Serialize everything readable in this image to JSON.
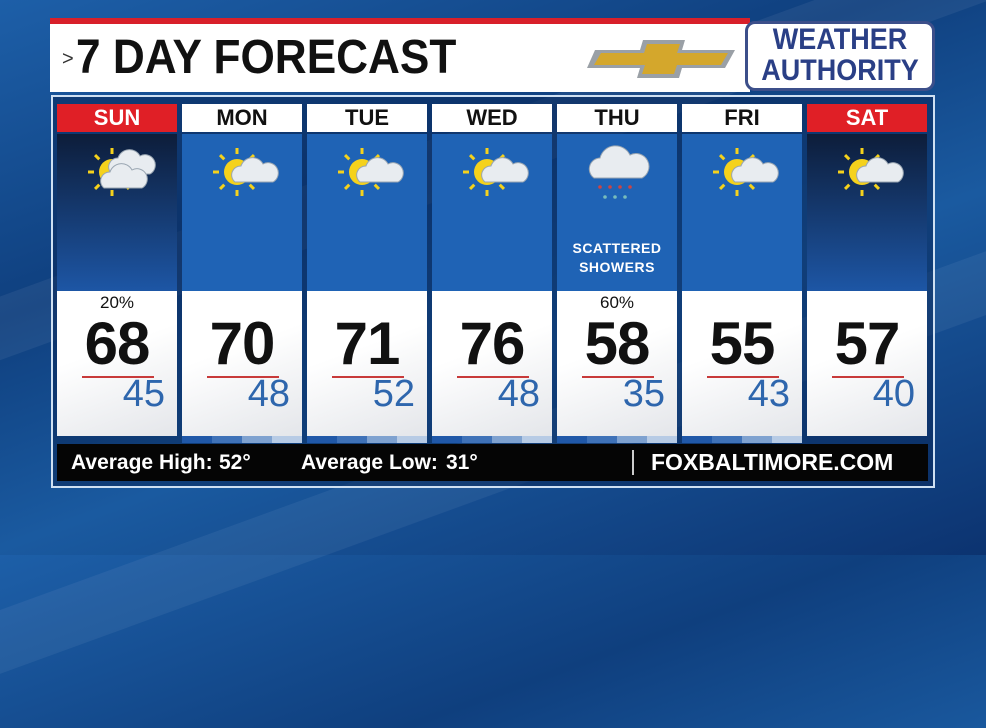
{
  "header": {
    "title": "7 DAY FORECAST",
    "chevron": ">",
    "sponsor_logo": "Chevrolet bowtie",
    "brand_line1": "WEATHER",
    "brand_line2": "AUTHORITY"
  },
  "days": [
    {
      "day": "SUN",
      "weekend": true,
      "icon": "partly-cloudy-icon",
      "precip": "20%",
      "high": "68",
      "low": "45",
      "condition": ""
    },
    {
      "day": "MON",
      "weekend": false,
      "icon": "partly-sunny-icon",
      "precip": "",
      "high": "70",
      "low": "48",
      "condition": ""
    },
    {
      "day": "TUE",
      "weekend": false,
      "icon": "partly-sunny-icon",
      "precip": "",
      "high": "71",
      "low": "52",
      "condition": ""
    },
    {
      "day": "WED",
      "weekend": false,
      "icon": "partly-sunny-icon",
      "precip": "",
      "high": "76",
      "low": "48",
      "condition": ""
    },
    {
      "day": "THU",
      "weekend": false,
      "icon": "rain-cloud-icon",
      "precip": "60%",
      "high": "58",
      "low": "35",
      "condition": "SCATTERED SHOWERS"
    },
    {
      "day": "FRI",
      "weekend": false,
      "icon": "partly-sunny-icon",
      "precip": "",
      "high": "55",
      "low": "43",
      "condition": ""
    },
    {
      "day": "SAT",
      "weekend": true,
      "icon": "partly-sunny-icon",
      "precip": "",
      "high": "57",
      "low": "40",
      "condition": ""
    }
  ],
  "footer": {
    "avg_high_label": "Average High:",
    "avg_high": "52°",
    "avg_low_label": "Average Low:",
    "avg_low": "31°",
    "website": "FOXBALTIMORE.COM"
  },
  "colors": {
    "weekend": "#e01f26",
    "low_temp": "#2e66ad",
    "sky": "#1f63b5"
  }
}
